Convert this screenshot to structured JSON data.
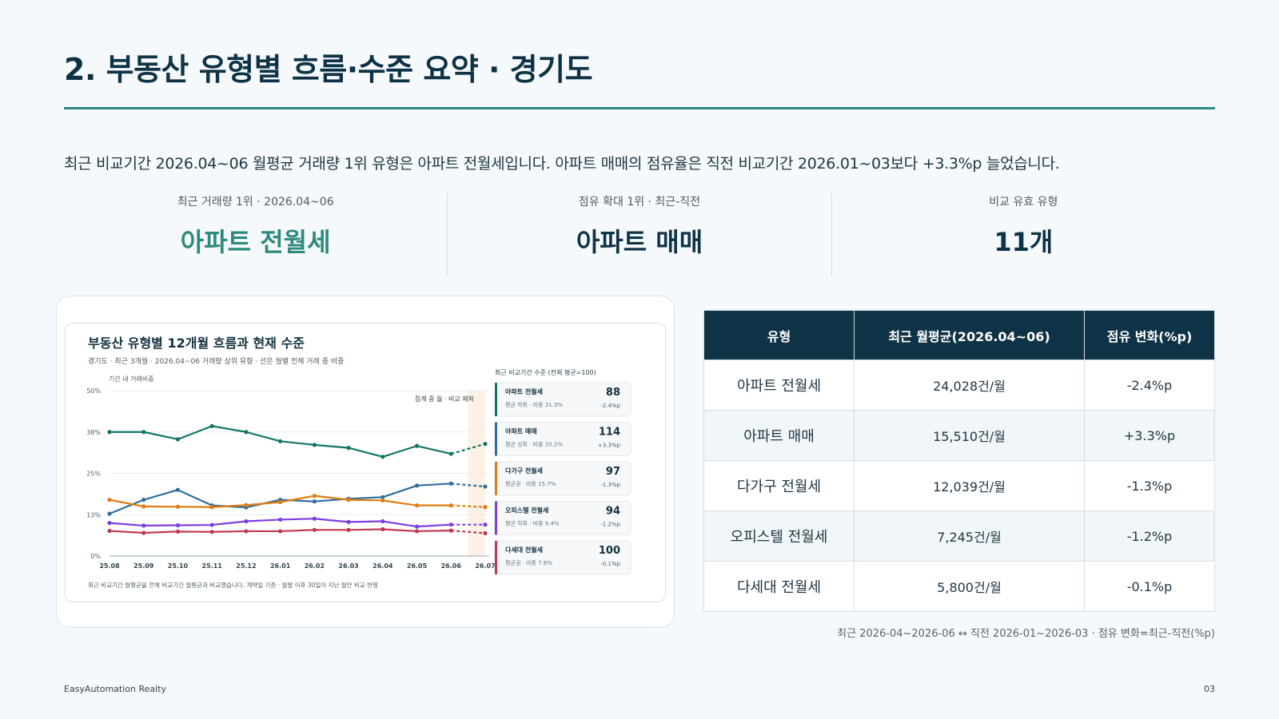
{
  "page": {
    "title": "2. 부동산 유형별 흐름·수준 요약 · 경기도",
    "summary": "최근 비교기간 2026.04~06 월평균 거래량 1위 유형은 아파트 전월세입니다. 아파트 매매의 점유율은 직전 비교기간 2026.01~03보다 +3.3%p 늘었습니다."
  },
  "kpis": [
    {
      "label": "최근 거래량 1위 · 2026.04~06",
      "value": "아파트 전월세"
    },
    {
      "label": "점유 확대 1위 · 최근-직전",
      "value": "아파트 매매"
    },
    {
      "label": "비교 유효 유형",
      "value": "11개"
    }
  ],
  "colors": {
    "accent": "#2e8a7c",
    "navy": "#0f3346"
  },
  "chart_data": {
    "type": "line",
    "title": "부동산 유형별 12개월 흐름과 현재 수준",
    "subtitle": "경기도 · 최근 3개월 · 2026.04~06 거래량 상위 유형 · 선은 월별 전체 거래 중 비중",
    "ylabel": "기간 내 거래비중",
    "yticks": [
      "0%",
      "13%",
      "25%",
      "38%",
      "50%"
    ],
    "ylim": [
      0,
      50
    ],
    "x": [
      "25.08",
      "25.09",
      "25.10",
      "25.11",
      "25.12",
      "26.01",
      "26.02",
      "26.03",
      "26.04",
      "26.05",
      "26.06",
      "26.07"
    ],
    "shaded_label": "집계 중 월 · 비교 제외",
    "grid": true,
    "series": [
      {
        "name": "아파트 전월세",
        "color": "#137567",
        "values": [
          37.5,
          37.5,
          35.3,
          39.3,
          37.5,
          34.7,
          33.6,
          32.7,
          30.0,
          33.3,
          30.9,
          33.9
        ]
      },
      {
        "name": "아파트 매매",
        "color": "#2f6e9c",
        "values": [
          12.8,
          17.0,
          20.0,
          15.3,
          14.7,
          17.0,
          16.5,
          17.3,
          17.8,
          21.3,
          21.9,
          21.0
        ]
      },
      {
        "name": "다가구 전월세",
        "color": "#df7c12",
        "values": [
          17.0,
          15.0,
          14.9,
          14.8,
          15.4,
          16.3,
          18.2,
          17.0,
          16.8,
          15.3,
          15.3,
          14.8
        ]
      },
      {
        "name": "오피스텔 전월세",
        "color": "#7d3ee0",
        "values": [
          10.0,
          9.2,
          9.3,
          9.4,
          10.5,
          11.0,
          11.3,
          10.3,
          10.5,
          8.9,
          9.5,
          9.5
        ]
      },
      {
        "name": "다세대 전월세",
        "color": "#c0394f",
        "values": [
          7.6,
          7.0,
          7.4,
          7.3,
          7.5,
          7.5,
          7.9,
          7.9,
          8.1,
          7.5,
          7.7,
          6.9
        ]
      }
    ],
    "legend_title": "최근 비교기간 수준 (전체 평균=100)",
    "legend_cards": [
      {
        "name": "아파트 전월세",
        "sub": "평균 하회 · 비중 31.3%",
        "index": "88",
        "delta": "-2.4%p"
      },
      {
        "name": "아파트 매매",
        "sub": "평균 상회 · 비중 20.2%",
        "index": "114",
        "delta": "+3.3%p"
      },
      {
        "name": "다가구 전월세",
        "sub": "평균권 · 비중 15.7%",
        "index": "97",
        "delta": "-1.3%p"
      },
      {
        "name": "오피스텔 전월세",
        "sub": "평균 하회 · 비중 9.4%",
        "index": "94",
        "delta": "-1.2%p"
      },
      {
        "name": "다세대 전월세",
        "sub": "평균권 · 비중 7.6%",
        "index": "100",
        "delta": "-0.1%p"
      }
    ],
    "footnote": "최근 비교기간 월평균을 전체 비교기간 월평균과 비교했습니다. 계약일 기준 · 월말 이후 30일이 지난 월만 비교 반영"
  },
  "table": {
    "headers": [
      "유형",
      "최근 월평균(2026.04~06)",
      "점유 변화(%p)"
    ],
    "rows": [
      {
        "type": "아파트 전월세",
        "avg": "24,028건/월",
        "change": "-2.4%p"
      },
      {
        "type": "아파트 매매",
        "avg": "15,510건/월",
        "change": "+3.3%p"
      },
      {
        "type": "다가구 전월세",
        "avg": "12,039건/월",
        "change": "-1.3%p"
      },
      {
        "type": "오피스텔 전월세",
        "avg": "7,245건/월",
        "change": "-1.2%p"
      },
      {
        "type": "다세대 전월세",
        "avg": "5,800건/월",
        "change": "-0.1%p"
      }
    ],
    "note": "최근 2026-04~2026-06 ↔ 직전 2026-01~2026-03 · 점유 변화=최근-직전(%p)"
  },
  "footer": {
    "company": "EasyAutomation Realty",
    "page_number": "03"
  }
}
